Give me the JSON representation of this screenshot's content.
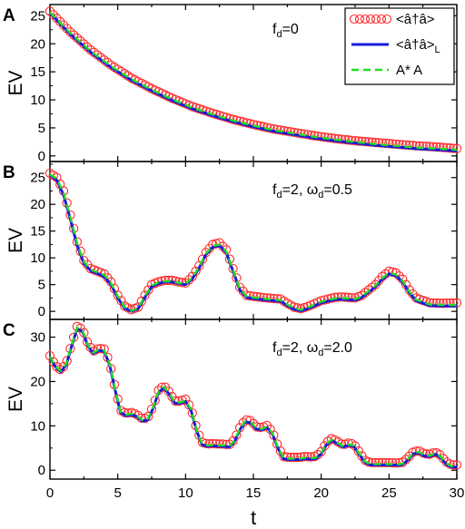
{
  "figure": {
    "ylabel": "EV",
    "xlabel": "t",
    "xticks": [
      "0",
      "5",
      "10",
      "15",
      "20",
      "25",
      "30"
    ],
    "legend": [
      {
        "label": "<â†â>",
        "style": "open-circle",
        "color": "#ff2a2a"
      },
      {
        "label": "<â†â>",
        "sub": "L",
        "style": "solid",
        "color": "#1a1adb"
      },
      {
        "label": "A* A",
        "style": "dashed",
        "color": "#22dd22"
      }
    ]
  },
  "chart_data": [
    {
      "panel": "A",
      "type": "line",
      "annotation": {
        "f": "f",
        "f_sub": "d",
        "rest": "=0"
      },
      "xlim": [
        0,
        30
      ],
      "ylim": [
        -1,
        27
      ],
      "yticks": [
        0,
        5,
        10,
        15,
        20,
        25
      ],
      "x": [
        0,
        1.5,
        3,
        4.5,
        6,
        7.5,
        9,
        10.5,
        12,
        13.5,
        15,
        16.5,
        18,
        19.5,
        21,
        22.5,
        24,
        25.5,
        27,
        28.5,
        30
      ],
      "series": [
        {
          "name": "<â†â>",
          "style": "circle",
          "color": "#ff2a2a",
          "values": [
            25.8,
            22.1,
            18.9,
            16.2,
            13.9,
            12.0,
            10.3,
            8.8,
            7.6,
            6.5,
            5.6,
            4.8,
            4.2,
            3.6,
            3.1,
            2.7,
            2.4,
            2.1,
            1.8,
            1.6,
            1.3
          ]
        },
        {
          "name": "<â†â>L",
          "style": "solid",
          "color": "#1a1adb",
          "values": [
            25.5,
            21.7,
            18.5,
            15.8,
            13.5,
            11.6,
            9.9,
            8.4,
            7.2,
            6.1,
            5.2,
            4.4,
            3.8,
            3.2,
            2.7,
            2.3,
            1.9,
            1.6,
            1.3,
            1.1,
            0.9
          ]
        },
        {
          "name": "A* A",
          "style": "dashed",
          "color": "#22dd22",
          "values": [
            25.6,
            21.9,
            18.7,
            16.0,
            13.7,
            11.8,
            10.1,
            8.6,
            7.4,
            6.3,
            5.4,
            4.6,
            4.0,
            3.4,
            2.9,
            2.5,
            2.1,
            1.8,
            1.5,
            1.3,
            1.1
          ]
        }
      ]
    },
    {
      "panel": "B",
      "type": "line",
      "annotation": {
        "f": "f",
        "f_sub": "d",
        "mid": "=2, ",
        "w": "ω",
        "w_sub": "d",
        "rest": "=0.5"
      },
      "xlim": [
        0,
        30
      ],
      "ylim": [
        -1.5,
        28
      ],
      "yticks": [
        0,
        5,
        10,
        15,
        20,
        25
      ],
      "x": [
        0,
        0.5,
        1,
        1.5,
        2,
        2.5,
        3,
        3.5,
        4,
        4.5,
        5,
        5.5,
        6,
        6.5,
        7,
        7.5,
        8,
        8.5,
        9,
        9.5,
        10,
        10.5,
        11,
        11.5,
        12,
        12.5,
        13,
        13.5,
        14,
        14.5,
        15,
        16,
        17,
        17.5,
        18,
        18.5,
        19,
        20,
        21,
        21.5,
        22,
        22.5,
        23,
        24,
        24.5,
        25,
        25.5,
        26,
        26.5,
        27,
        28,
        29,
        30
      ],
      "series": [
        {
          "name": "<â†â>",
          "style": "circle",
          "color": "#ff2a2a",
          "values": [
            25.8,
            25.0,
            22.5,
            18.0,
            13.0,
            9.5,
            8.0,
            7.5,
            7.0,
            5.5,
            3.0,
            1.0,
            0.3,
            0.8,
            3.0,
            5.0,
            5.5,
            5.8,
            5.8,
            5.5,
            5.3,
            6.5,
            8.5,
            11.0,
            12.5,
            12.8,
            11.5,
            8.0,
            4.5,
            3.0,
            2.8,
            2.5,
            2.3,
            1.5,
            0.8,
            0.5,
            0.9,
            2.0,
            2.6,
            2.7,
            2.6,
            2.5,
            3.0,
            5.0,
            6.5,
            7.5,
            7.2,
            6.0,
            4.0,
            2.5,
            1.6,
            1.5,
            1.6
          ]
        },
        {
          "name": "<â†â>L",
          "style": "solid",
          "color": "#1a1adb",
          "values": [
            25.5,
            24.5,
            21.8,
            17.3,
            12.3,
            9.0,
            7.6,
            7.1,
            6.5,
            5.0,
            2.5,
            0.6,
            0.0,
            0.5,
            2.6,
            4.6,
            5.2,
            5.5,
            5.5,
            5.2,
            5.0,
            6.1,
            8.1,
            10.6,
            12.0,
            12.3,
            11.0,
            7.5,
            4.0,
            2.6,
            2.4,
            2.1,
            1.9,
            1.1,
            0.4,
            0.1,
            0.5,
            1.6,
            2.2,
            2.3,
            2.2,
            2.1,
            2.6,
            4.6,
            6.0,
            7.0,
            6.7,
            5.5,
            3.5,
            2.0,
            1.1,
            1.0,
            1.0
          ]
        },
        {
          "name": "A* A",
          "style": "dashed",
          "color": "#22dd22",
          "values": [
            25.6,
            24.8,
            22.2,
            17.7,
            12.7,
            9.3,
            7.8,
            7.3,
            6.8,
            5.3,
            2.8,
            0.8,
            0.1,
            0.6,
            2.8,
            4.8,
            5.4,
            5.6,
            5.6,
            5.3,
            5.1,
            6.3,
            8.3,
            10.8,
            12.2,
            12.5,
            11.2,
            7.7,
            4.2,
            2.8,
            2.6,
            2.3,
            2.1,
            1.3,
            0.6,
            0.3,
            0.7,
            1.8,
            2.4,
            2.5,
            2.4,
            2.3,
            2.8,
            4.8,
            6.2,
            7.2,
            6.9,
            5.7,
            3.7,
            2.2,
            1.3,
            1.2,
            1.2
          ]
        }
      ]
    },
    {
      "panel": "C",
      "type": "line",
      "annotation": {
        "f": "f",
        "f_sub": "d",
        "mid": "=2, ",
        "w": "ω",
        "w_sub": "d",
        "rest": "=2.0"
      },
      "xlim": [
        0,
        30
      ],
      "ylim": [
        -2,
        34
      ],
      "yticks": [
        0,
        10,
        20,
        30
      ],
      "x": [
        0,
        0.4,
        0.8,
        1.2,
        1.6,
        2.0,
        2.4,
        2.8,
        3.2,
        3.6,
        4.0,
        4.4,
        4.8,
        5.2,
        5.6,
        6.0,
        6.4,
        6.8,
        7.2,
        7.6,
        8.0,
        8.4,
        8.8,
        9.2,
        9.6,
        10.0,
        10.4,
        10.8,
        11.2,
        11.6,
        12.0,
        12.4,
        12.8,
        13.2,
        13.6,
        14.0,
        14.4,
        14.8,
        15.2,
        15.6,
        16.0,
        16.4,
        16.8,
        17.2,
        17.6,
        18.0,
        18.4,
        18.8,
        19.2,
        19.6,
        20.0,
        20.4,
        20.8,
        21.2,
        21.6,
        22.0,
        22.4,
        22.8,
        23.2,
        23.6,
        24.0,
        24.4,
        24.8,
        25.2,
        25.6,
        26.0,
        26.4,
        26.8,
        27.2,
        27.6,
        28.0,
        28.4,
        28.8,
        29.2,
        29.6,
        30.0
      ],
      "series": [
        {
          "name": "<â†â>",
          "style": "circle",
          "color": "#ff2a2a",
          "values": [
            25.8,
            23.6,
            22.6,
            24.1,
            28.5,
            32.4,
            31.8,
            28.5,
            26.8,
            27.5,
            27.3,
            24.3,
            18.6,
            13.5,
            12.8,
            13.0,
            12.6,
            11.6,
            11.8,
            14.4,
            18.0,
            19.1,
            17.6,
            15.6,
            15.6,
            16.0,
            14.0,
            9.5,
            6.3,
            5.9,
            6.0,
            5.9,
            5.9,
            5.7,
            6.9,
            9.6,
            11.4,
            11.2,
            9.8,
            9.6,
            10.1,
            8.7,
            5.5,
            3.1,
            2.9,
            2.9,
            2.9,
            3.1,
            3.0,
            3.1,
            4.2,
            6.3,
            7.2,
            6.5,
            5.7,
            6.1,
            5.9,
            4.1,
            2.3,
            1.7,
            1.7,
            1.7,
            1.7,
            1.7,
            1.6,
            1.8,
            2.8,
            4.2,
            4.4,
            3.7,
            3.6,
            4.1,
            3.4,
            1.9,
            1.2,
            1.2
          ]
        },
        {
          "name": "<â†â>L",
          "style": "solid",
          "color": "#1a1adb",
          "values": [
            25.5,
            23.3,
            22.2,
            23.7,
            28.0,
            31.9,
            31.3,
            28.0,
            26.3,
            27.0,
            26.8,
            23.8,
            18.1,
            13.0,
            12.3,
            12.5,
            12.1,
            11.1,
            11.3,
            13.9,
            17.5,
            18.6,
            17.1,
            15.1,
            15.1,
            15.5,
            13.5,
            9.0,
            5.8,
            5.4,
            5.5,
            5.4,
            5.4,
            5.2,
            6.4,
            9.1,
            10.9,
            10.7,
            9.3,
            9.1,
            9.6,
            8.2,
            5.0,
            2.6,
            2.4,
            2.4,
            2.4,
            2.6,
            2.5,
            2.6,
            3.7,
            5.8,
            6.7,
            6.0,
            5.2,
            5.6,
            5.4,
            3.6,
            1.8,
            1.2,
            1.2,
            1.2,
            1.2,
            1.2,
            1.1,
            1.3,
            2.3,
            3.7,
            3.9,
            3.2,
            3.1,
            3.6,
            2.9,
            1.4,
            0.7,
            0.7
          ]
        },
        {
          "name": "A* A",
          "style": "dashed",
          "color": "#22dd22",
          "values": [
            25.6,
            23.4,
            22.4,
            23.9,
            28.2,
            32.1,
            31.5,
            28.2,
            26.5,
            27.2,
            27.0,
            24.0,
            18.3,
            13.2,
            12.5,
            12.7,
            12.3,
            11.3,
            11.5,
            14.1,
            17.7,
            18.8,
            17.3,
            15.3,
            15.3,
            15.7,
            13.7,
            9.2,
            6.0,
            5.6,
            5.7,
            5.6,
            5.6,
            5.4,
            6.6,
            9.3,
            11.1,
            10.9,
            9.5,
            9.3,
            9.8,
            8.4,
            5.2,
            2.8,
            2.6,
            2.6,
            2.6,
            2.8,
            2.7,
            2.8,
            3.9,
            6.0,
            6.9,
            6.2,
            5.4,
            5.8,
            5.6,
            3.8,
            2.0,
            1.4,
            1.4,
            1.4,
            1.4,
            1.4,
            1.3,
            1.5,
            2.5,
            3.9,
            4.1,
            3.4,
            3.3,
            3.8,
            3.1,
            1.6,
            0.9,
            0.9
          ]
        }
      ]
    }
  ]
}
